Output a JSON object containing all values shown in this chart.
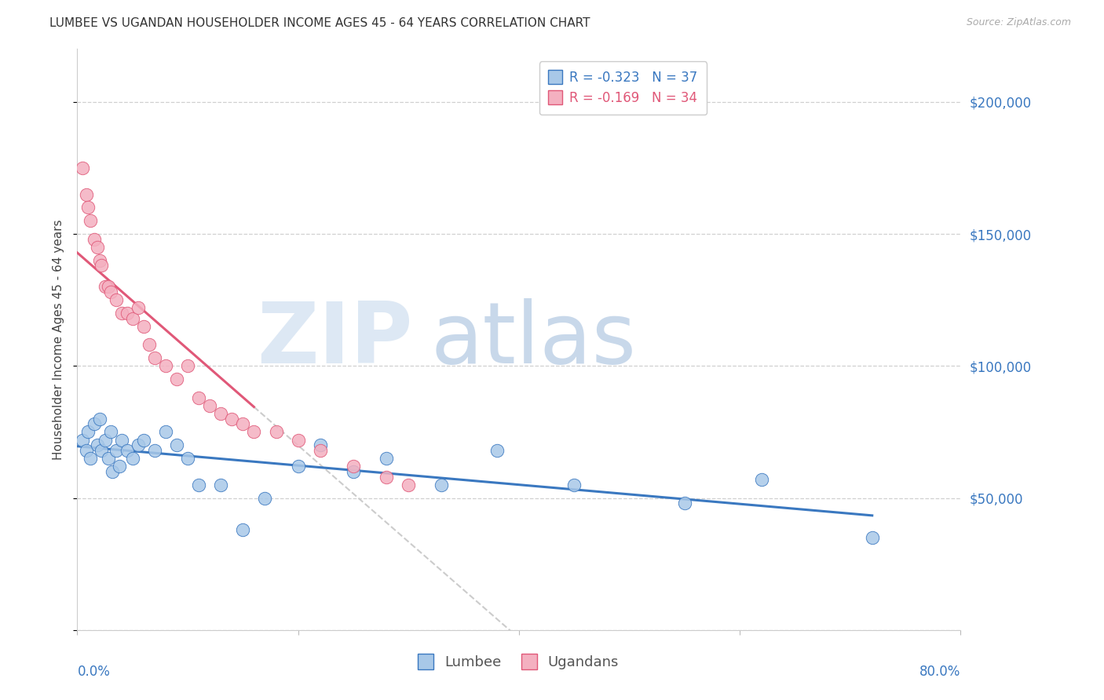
{
  "title": "LUMBEE VS UGANDAN HOUSEHOLDER INCOME AGES 45 - 64 YEARS CORRELATION CHART",
  "source": "Source: ZipAtlas.com",
  "ylabel": "Householder Income Ages 45 - 64 years",
  "lumbee_R": -0.323,
  "lumbee_N": 37,
  "ugandan_R": -0.169,
  "ugandan_N": 34,
  "lumbee_color": "#a8c8e8",
  "ugandan_color": "#f4b0c0",
  "lumbee_line_color": "#3a78c0",
  "ugandan_line_color": "#e05878",
  "lumbee_x": [
    0.5,
    0.8,
    1.0,
    1.2,
    1.5,
    1.8,
    2.0,
    2.2,
    2.5,
    2.8,
    3.0,
    3.2,
    3.5,
    3.8,
    4.0,
    4.5,
    5.0,
    5.5,
    6.0,
    7.0,
    8.0,
    9.0,
    10.0,
    11.0,
    13.0,
    15.0,
    17.0,
    20.0,
    22.0,
    25.0,
    28.0,
    33.0,
    38.0,
    45.0,
    55.0,
    62.0,
    72.0
  ],
  "lumbee_y": [
    72000,
    68000,
    75000,
    65000,
    78000,
    70000,
    80000,
    68000,
    72000,
    65000,
    75000,
    60000,
    68000,
    62000,
    72000,
    68000,
    65000,
    70000,
    72000,
    68000,
    75000,
    70000,
    65000,
    55000,
    55000,
    38000,
    50000,
    62000,
    70000,
    60000,
    65000,
    55000,
    68000,
    55000,
    48000,
    57000,
    35000
  ],
  "ugandan_x": [
    0.5,
    0.8,
    1.0,
    1.2,
    1.5,
    1.8,
    2.0,
    2.2,
    2.5,
    2.8,
    3.0,
    3.5,
    4.0,
    4.5,
    5.0,
    5.5,
    6.0,
    6.5,
    7.0,
    8.0,
    9.0,
    10.0,
    11.0,
    12.0,
    13.0,
    14.0,
    15.0,
    16.0,
    18.0,
    20.0,
    22.0,
    25.0,
    28.0,
    30.0
  ],
  "ugandan_y": [
    175000,
    165000,
    160000,
    155000,
    148000,
    145000,
    140000,
    138000,
    130000,
    130000,
    128000,
    125000,
    120000,
    120000,
    118000,
    122000,
    115000,
    108000,
    103000,
    100000,
    95000,
    100000,
    88000,
    85000,
    82000,
    80000,
    78000,
    75000,
    75000,
    72000,
    68000,
    62000,
    58000,
    55000
  ],
  "ugandan_solid_xmax": 16,
  "lumbee_solid_xmax": 72,
  "ylim": [
    0,
    220000
  ],
  "xlim": [
    0,
    80
  ],
  "yticks": [
    0,
    50000,
    100000,
    150000,
    200000
  ],
  "xticks": [
    0,
    20,
    40,
    60,
    80
  ],
  "background_color": "#ffffff",
  "grid_color": "#d0d0d0",
  "dash_color": "#cccccc",
  "watermark_zip_color": "#dde8f4",
  "watermark_atlas_color": "#c8d8ea"
}
